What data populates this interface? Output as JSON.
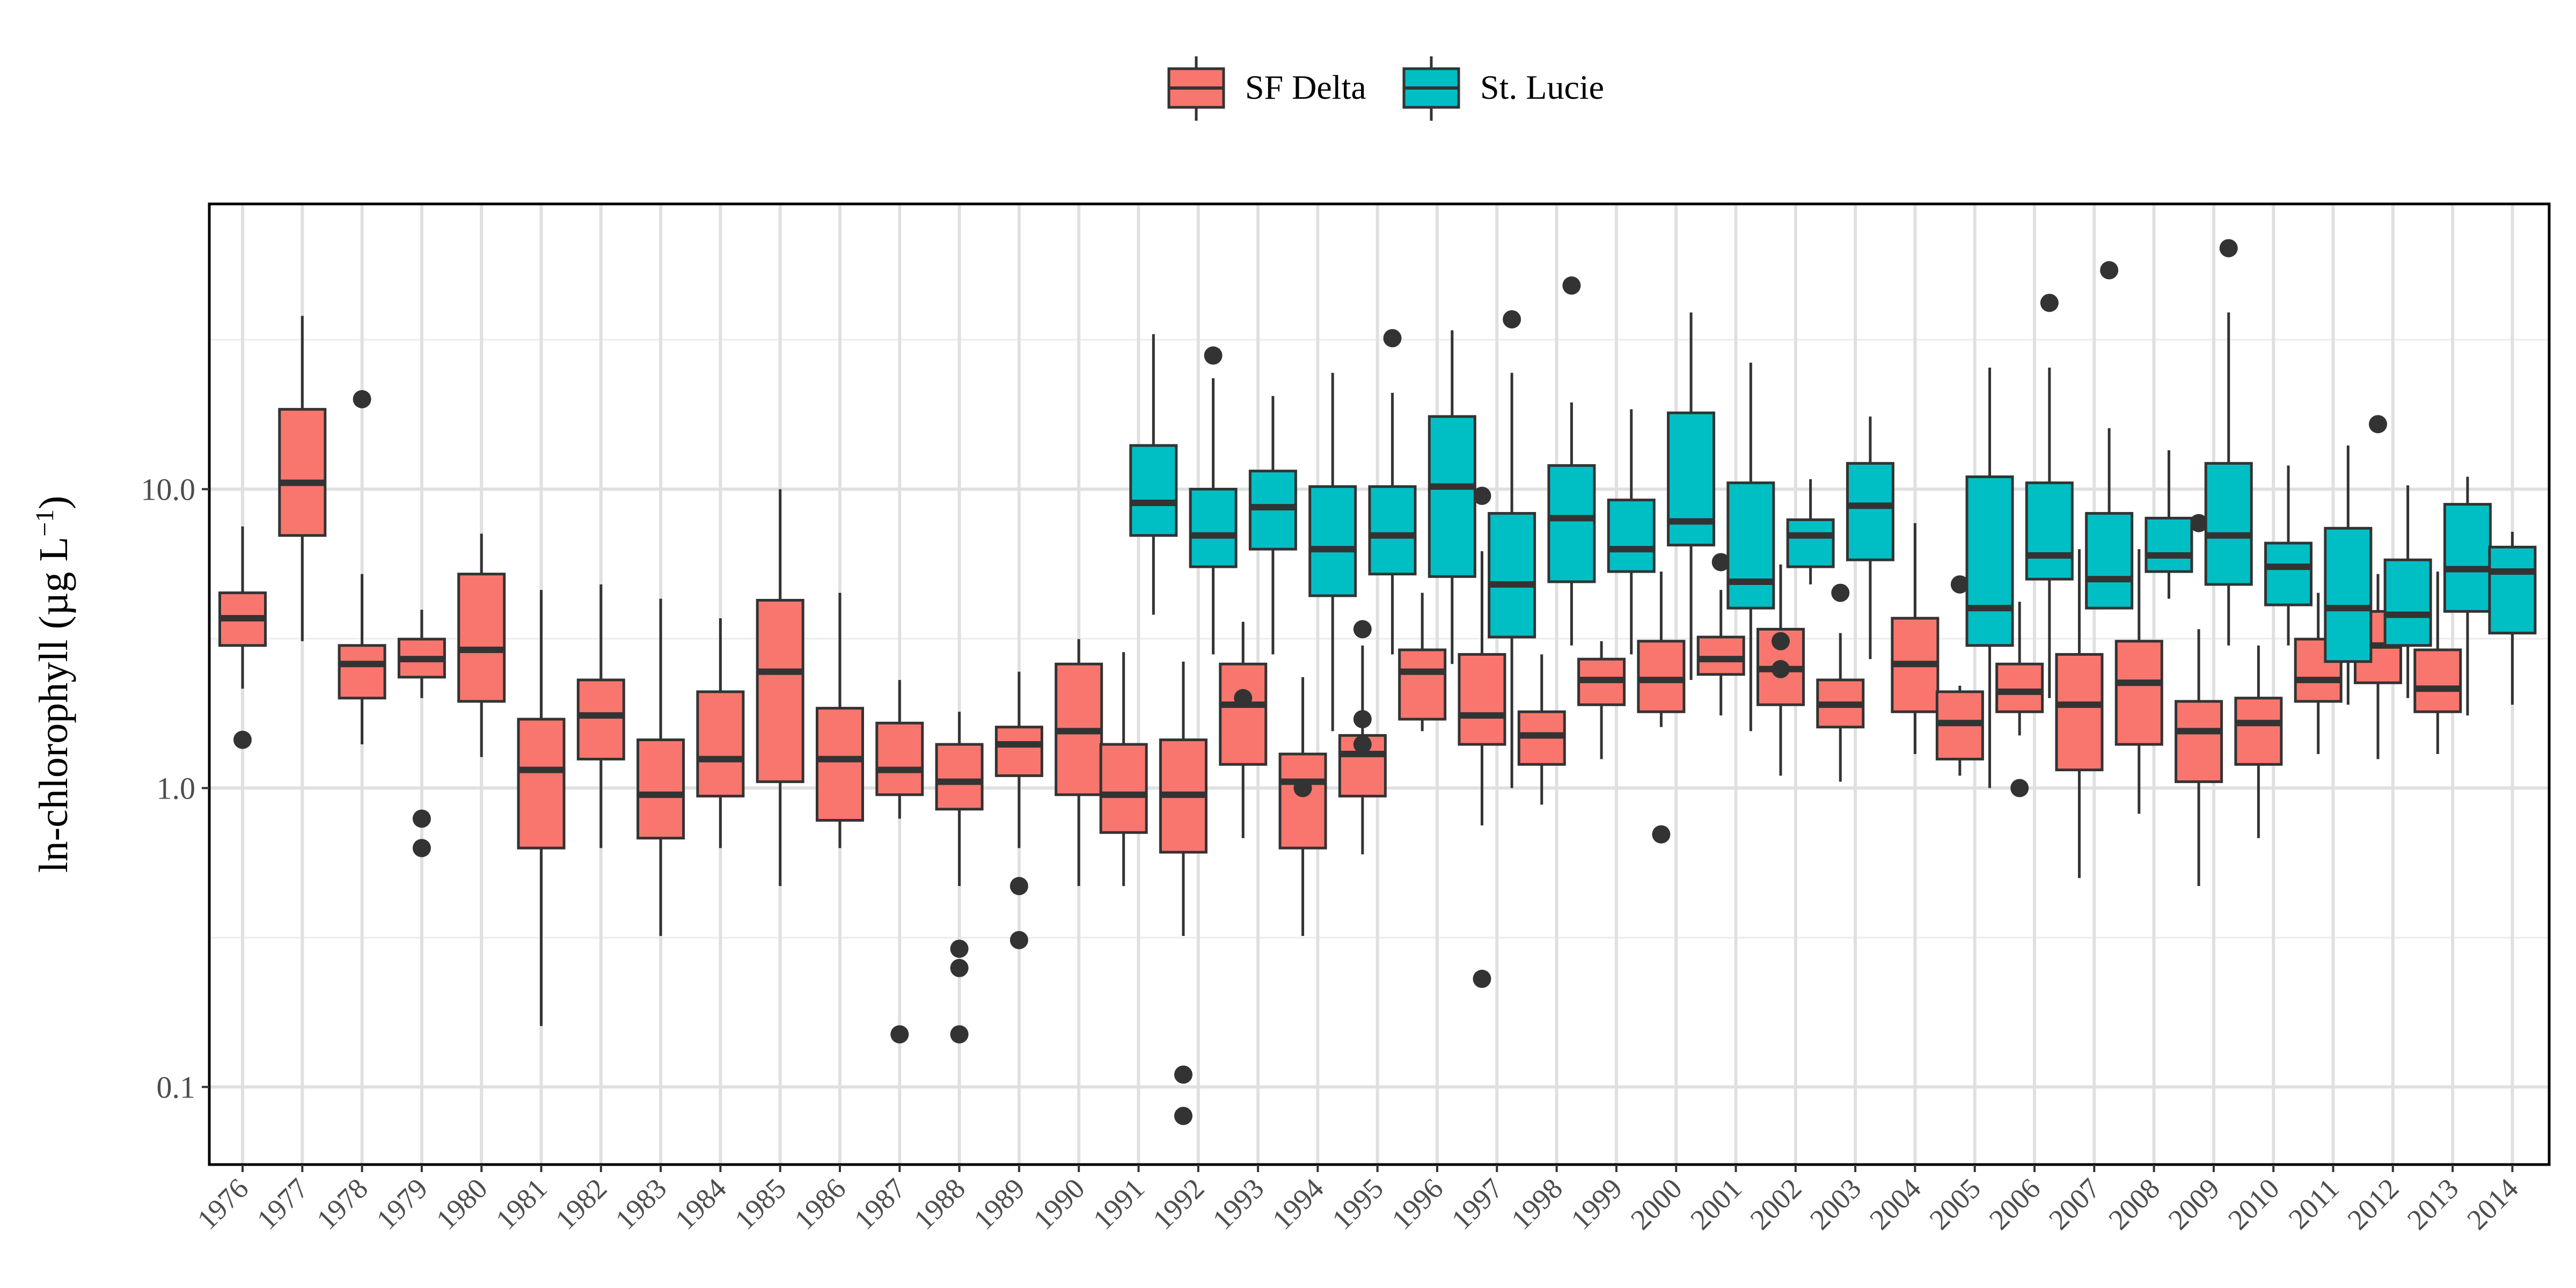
{
  "chart_data": {
    "type": "boxplot",
    "ylabel": "ln-chlorophyll (µg L⁻¹)",
    "ylabel_main": "ln-chlorophyll (µg L",
    "ylabel_sup": "−1",
    "ylabel_end": ")",
    "xlabel": "",
    "y_scale": "log10",
    "ylim": [
      0.055,
      90
    ],
    "y_ticks": [
      0.1,
      1.0,
      10.0
    ],
    "y_tick_labels": [
      "0.1",
      "1.0",
      "10.0"
    ],
    "grid": true,
    "legend_position": "top",
    "legend": [
      {
        "name": "SF Delta",
        "color": "#F8766D"
      },
      {
        "name": "St. Lucie",
        "color": "#00BFC4"
      }
    ],
    "categories": [
      "1976",
      "1977",
      "1978",
      "1979",
      "1980",
      "1981",
      "1982",
      "1983",
      "1984",
      "1985",
      "1986",
      "1987",
      "1988",
      "1989",
      "1990",
      "1991",
      "1992",
      "1993",
      "1994",
      "1995",
      "1996",
      "1997",
      "1998",
      "1999",
      "2000",
      "2001",
      "2002",
      "2003",
      "2004",
      "2005",
      "2006",
      "2007",
      "2008",
      "2009",
      "2010",
      "2011",
      "2012",
      "2013",
      "2014"
    ],
    "series": [
      {
        "name": "SF Delta",
        "color": "#F8766D",
        "boxes": [
          {
            "x": "1976",
            "whislo": 2.15,
            "q1": 3.0,
            "med": 3.7,
            "q3": 4.5,
            "whishi": 7.5,
            "fliers": [
              1.45
            ]
          },
          {
            "x": "1977",
            "whislo": 3.1,
            "q1": 7.0,
            "med": 10.5,
            "q3": 18.5,
            "whishi": 38.0,
            "fliers": []
          },
          {
            "x": "1978",
            "whislo": 1.4,
            "q1": 2.0,
            "med": 2.6,
            "q3": 3.0,
            "whishi": 5.2,
            "fliers": [
              20.0
            ]
          },
          {
            "x": "1979",
            "whislo": 2.0,
            "q1": 2.35,
            "med": 2.7,
            "q3": 3.15,
            "whishi": 3.95,
            "fliers": [
              0.79,
              0.63
            ]
          },
          {
            "x": "1980",
            "whislo": 1.27,
            "q1": 1.95,
            "med": 2.9,
            "q3": 5.2,
            "whishi": 7.1,
            "fliers": []
          },
          {
            "x": "1981",
            "whislo": 0.16,
            "q1": 0.63,
            "med": 1.15,
            "q3": 1.7,
            "whishi": 4.6,
            "fliers": []
          },
          {
            "x": "1982",
            "whislo": 0.63,
            "q1": 1.25,
            "med": 1.75,
            "q3": 2.3,
            "whishi": 4.8,
            "fliers": []
          },
          {
            "x": "1983",
            "whislo": 0.32,
            "q1": 0.68,
            "med": 0.95,
            "q3": 1.45,
            "whishi": 4.3,
            "fliers": []
          },
          {
            "x": "1984",
            "whislo": 0.63,
            "q1": 0.94,
            "med": 1.25,
            "q3": 2.1,
            "whishi": 3.7,
            "fliers": []
          },
          {
            "x": "1985",
            "whislo": 0.47,
            "q1": 1.05,
            "med": 2.45,
            "q3": 4.25,
            "whishi": 10.0,
            "fliers": []
          },
          {
            "x": "1986",
            "whislo": 0.63,
            "q1": 0.78,
            "med": 1.25,
            "q3": 1.85,
            "whishi": 4.5,
            "fliers": []
          },
          {
            "x": "1987",
            "whislo": 0.79,
            "q1": 0.95,
            "med": 1.15,
            "q3": 1.65,
            "whishi": 2.3,
            "fliers": [
              0.15
            ]
          },
          {
            "x": "1988",
            "whislo": 0.47,
            "q1": 0.85,
            "med": 1.05,
            "q3": 1.4,
            "whishi": 1.8,
            "fliers": [
              0.29,
              0.25,
              0.15
            ]
          },
          {
            "x": "1989",
            "whislo": 0.63,
            "q1": 1.1,
            "med": 1.4,
            "q3": 1.6,
            "whishi": 2.45,
            "fliers": [
              0.47,
              0.31
            ]
          },
          {
            "x": "1990",
            "whislo": 0.47,
            "q1": 0.95,
            "med": 1.55,
            "q3": 2.6,
            "whishi": 3.15,
            "fliers": []
          },
          {
            "x": "1991",
            "whislo": 0.47,
            "q1": 0.71,
            "med": 0.95,
            "q3": 1.4,
            "whishi": 2.85,
            "fliers": []
          },
          {
            "x": "1992",
            "whislo": 0.32,
            "q1": 0.61,
            "med": 0.95,
            "q3": 1.45,
            "whishi": 2.65,
            "fliers": [
              0.11,
              0.08
            ]
          },
          {
            "x": "1993",
            "whislo": 0.68,
            "q1": 1.2,
            "med": 1.9,
            "q3": 2.6,
            "whishi": 3.6,
            "fliers": [
              2.0
            ]
          },
          {
            "x": "1994",
            "whislo": 0.32,
            "q1": 0.63,
            "med": 1.05,
            "q3": 1.3,
            "whishi": 2.35,
            "fliers": [
              1.0
            ]
          },
          {
            "x": "1995",
            "whislo": 0.6,
            "q1": 0.94,
            "med": 1.3,
            "q3": 1.5,
            "whishi": 3.0,
            "fliers": [
              3.4,
              1.7,
              1.4
            ]
          },
          {
            "x": "1996",
            "whislo": 1.55,
            "q1": 1.7,
            "med": 2.45,
            "q3": 2.9,
            "whishi": 4.5,
            "fliers": []
          },
          {
            "x": "1997",
            "whislo": 0.75,
            "q1": 1.4,
            "med": 1.75,
            "q3": 2.8,
            "whishi": 6.2,
            "fliers": [
              9.5,
              0.23
            ]
          },
          {
            "x": "1998",
            "whislo": 0.88,
            "q1": 1.2,
            "med": 1.5,
            "q3": 1.8,
            "whishi": 2.8,
            "fliers": []
          },
          {
            "x": "1999",
            "whislo": 1.25,
            "q1": 1.9,
            "med": 2.3,
            "q3": 2.7,
            "whishi": 3.1,
            "fliers": []
          },
          {
            "x": "2000",
            "whislo": 1.6,
            "q1": 1.8,
            "med": 2.3,
            "q3": 3.1,
            "whishi": 5.3,
            "fliers": [
              0.7
            ]
          },
          {
            "x": "2001",
            "whislo": 1.75,
            "q1": 2.4,
            "med": 2.7,
            "q3": 3.2,
            "whishi": 4.6,
            "fliers": [
              5.7
            ]
          },
          {
            "x": "2002",
            "whislo": 1.1,
            "q1": 1.9,
            "med": 2.5,
            "q3": 3.4,
            "whishi": 5.6,
            "fliers": [
              3.1,
              2.5
            ]
          },
          {
            "x": "2003",
            "whislo": 1.05,
            "q1": 1.6,
            "med": 1.9,
            "q3": 2.3,
            "whishi": 3.3,
            "fliers": [
              4.5
            ]
          },
          {
            "x": "2004",
            "whislo": 1.3,
            "q1": 1.8,
            "med": 2.6,
            "q3": 3.7,
            "whishi": 7.7,
            "fliers": []
          },
          {
            "x": "2005",
            "whislo": 1.1,
            "q1": 1.25,
            "med": 1.65,
            "q3": 2.1,
            "whishi": 2.2,
            "fliers": [
              4.8
            ]
          },
          {
            "x": "2006",
            "whislo": 1.5,
            "q1": 1.8,
            "med": 2.1,
            "q3": 2.6,
            "whishi": 4.2,
            "fliers": [
              1.0
            ]
          },
          {
            "x": "2007",
            "whislo": 0.5,
            "q1": 1.15,
            "med": 1.9,
            "q3": 2.8,
            "whishi": 6.3,
            "fliers": []
          },
          {
            "x": "2008",
            "whislo": 0.82,
            "q1": 1.4,
            "med": 2.25,
            "q3": 3.1,
            "whishi": 6.3,
            "fliers": []
          },
          {
            "x": "2009",
            "whislo": 0.47,
            "q1": 1.05,
            "med": 1.55,
            "q3": 1.95,
            "whishi": 3.4,
            "fliers": [
              7.7
            ]
          },
          {
            "x": "2010",
            "whislo": 0.68,
            "q1": 1.2,
            "med": 1.65,
            "q3": 2.0,
            "whishi": 3.0,
            "fliers": []
          },
          {
            "x": "2011",
            "whislo": 1.3,
            "q1": 1.95,
            "med": 2.3,
            "q3": 3.15,
            "whishi": 4.5,
            "fliers": []
          },
          {
            "x": "2012",
            "whislo": 1.25,
            "q1": 2.25,
            "med": 3.0,
            "q3": 3.9,
            "whishi": 5.2,
            "fliers": [
              16.5
            ]
          },
          {
            "x": "2013",
            "whislo": 1.3,
            "q1": 1.8,
            "med": 2.15,
            "q3": 2.9,
            "whishi": 5.3,
            "fliers": []
          }
        ]
      },
      {
        "name": "St. Lucie",
        "color": "#00BFC4",
        "boxes": [
          {
            "x": "1991",
            "whislo": 3.8,
            "q1": 7.0,
            "med": 9.0,
            "q3": 14.0,
            "whishi": 33.0,
            "fliers": []
          },
          {
            "x": "1992",
            "whislo": 2.8,
            "q1": 5.5,
            "med": 7.0,
            "q3": 10.0,
            "whishi": 23.5,
            "fliers": [
              28.0
            ]
          },
          {
            "x": "1993",
            "whislo": 2.8,
            "q1": 6.3,
            "med": 8.7,
            "q3": 11.5,
            "whishi": 20.5,
            "fliers": []
          },
          {
            "x": "1994",
            "whislo": 1.55,
            "q1": 4.4,
            "med": 6.3,
            "q3": 10.2,
            "whishi": 24.5,
            "fliers": []
          },
          {
            "x": "1995",
            "whislo": 2.8,
            "q1": 5.2,
            "med": 7.0,
            "q3": 10.2,
            "whishi": 21.0,
            "fliers": [
              32.0
            ]
          },
          {
            "x": "1996",
            "whislo": 2.6,
            "q1": 5.1,
            "med": 10.2,
            "q3": 17.5,
            "whishi": 34.0,
            "fliers": []
          },
          {
            "x": "1997",
            "whislo": 1.0,
            "q1": 3.2,
            "med": 4.8,
            "q3": 8.3,
            "whishi": 24.5,
            "fliers": [
              37.0
            ]
          },
          {
            "x": "1998",
            "whislo": 3.0,
            "q1": 4.9,
            "med": 8.0,
            "q3": 12.0,
            "whishi": 19.5,
            "fliers": [
              48.0
            ]
          },
          {
            "x": "1999",
            "whislo": 2.8,
            "q1": 5.3,
            "med": 6.3,
            "q3": 9.2,
            "whishi": 18.5,
            "fliers": []
          },
          {
            "x": "2000",
            "whislo": 2.3,
            "q1": 6.5,
            "med": 7.8,
            "q3": 18.0,
            "whishi": 39.0,
            "fliers": []
          },
          {
            "x": "2001",
            "whislo": 1.55,
            "q1": 4.0,
            "med": 4.9,
            "q3": 10.5,
            "whishi": 26.5,
            "fliers": []
          },
          {
            "x": "2002",
            "whislo": 4.8,
            "q1": 5.5,
            "med": 7.0,
            "q3": 7.9,
            "whishi": 10.8,
            "fliers": []
          },
          {
            "x": "2003",
            "whislo": 2.7,
            "q1": 5.8,
            "med": 8.8,
            "q3": 12.2,
            "whishi": 17.5,
            "fliers": []
          },
          {
            "x": "2005",
            "whislo": 1.0,
            "q1": 3.0,
            "med": 4.0,
            "q3": 11.0,
            "whishi": 25.5,
            "fliers": []
          },
          {
            "x": "2006",
            "whislo": 2.0,
            "q1": 5.0,
            "med": 6.0,
            "q3": 10.5,
            "whishi": 25.5,
            "fliers": [
              42.0
            ]
          },
          {
            "x": "2007",
            "whislo": 4.0,
            "q1": 4.0,
            "med": 5.0,
            "q3": 8.3,
            "whishi": 16.0,
            "fliers": [
              54.0
            ]
          },
          {
            "x": "2008",
            "whislo": 4.3,
            "q1": 5.3,
            "med": 6.0,
            "q3": 8.0,
            "whishi": 13.5,
            "fliers": []
          },
          {
            "x": "2009",
            "whislo": 3.0,
            "q1": 4.8,
            "med": 7.0,
            "q3": 12.2,
            "whishi": 39.0,
            "fliers": [
              64.0
            ]
          },
          {
            "x": "2010",
            "whislo": 3.0,
            "q1": 4.1,
            "med": 5.5,
            "q3": 6.6,
            "whishi": 12.0,
            "fliers": []
          },
          {
            "x": "2011",
            "whislo": 1.9,
            "q1": 2.65,
            "med": 4.0,
            "q3": 7.4,
            "whishi": 14.0,
            "fliers": []
          },
          {
            "x": "2012",
            "whislo": 2.0,
            "q1": 3.0,
            "med": 3.8,
            "q3": 5.8,
            "whishi": 10.3,
            "fliers": []
          },
          {
            "x": "2013",
            "whislo": 1.75,
            "q1": 3.9,
            "med": 5.4,
            "q3": 8.9,
            "whishi": 11.0,
            "fliers": []
          },
          {
            "x": "2014",
            "whislo": 1.9,
            "q1": 3.3,
            "med": 5.3,
            "q3": 6.4,
            "whishi": 7.2,
            "fliers": []
          }
        ]
      }
    ]
  }
}
